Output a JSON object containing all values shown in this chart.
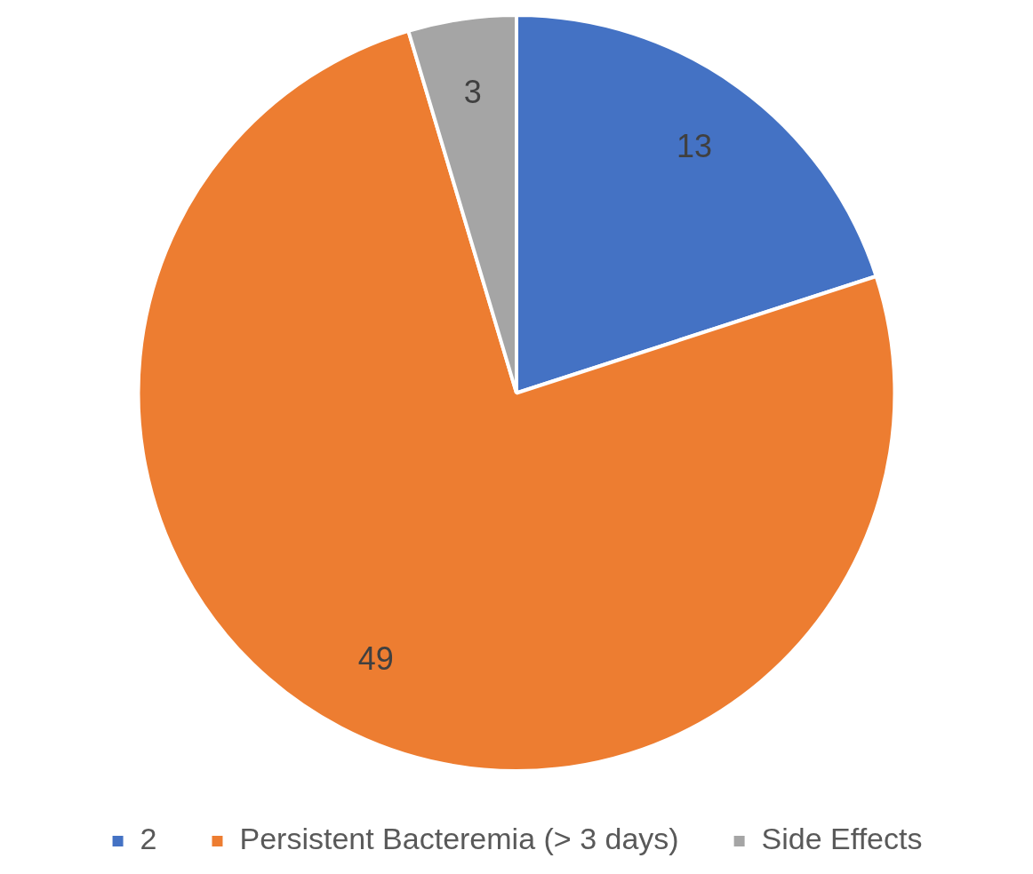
{
  "chart_data": {
    "type": "pie",
    "categories": [
      "2",
      "Persistent Bacteremia (> 3 days)",
      "Side Effects"
    ],
    "values": [
      13,
      49,
      3
    ],
    "colors": [
      "#4472c4",
      "#ed7d31",
      "#a5a5a5"
    ],
    "data_labels": true,
    "legend": "bottom"
  }
}
